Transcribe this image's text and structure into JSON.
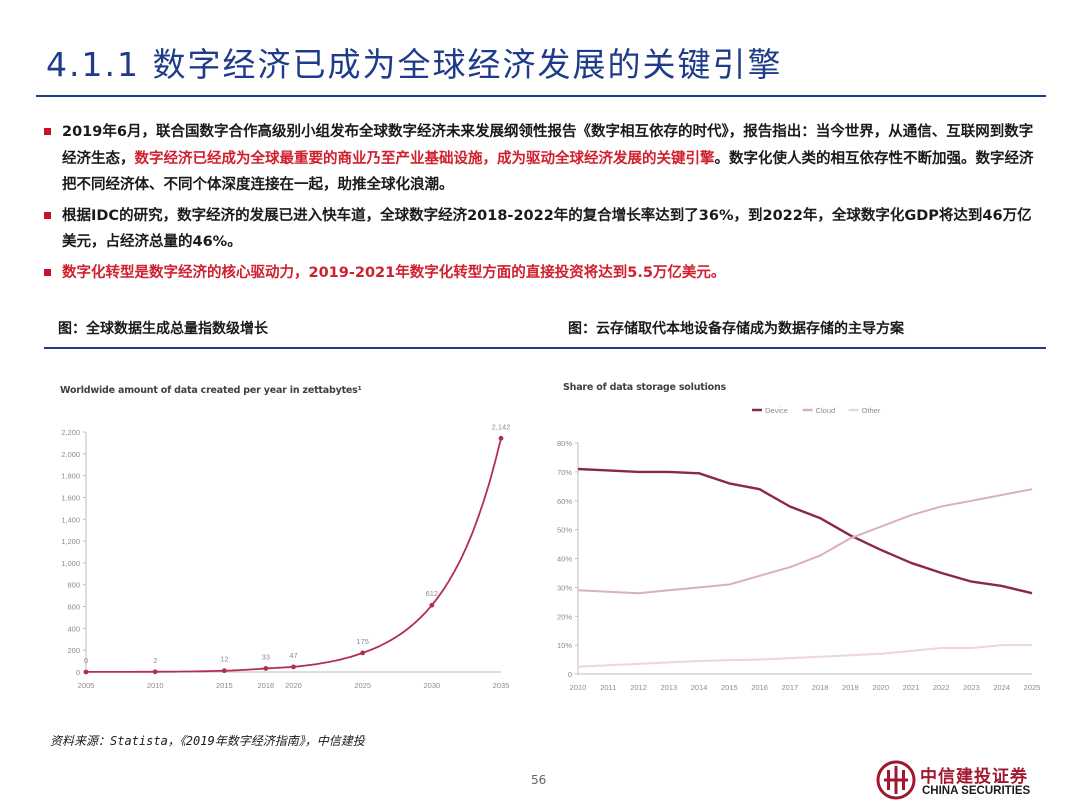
{
  "header": {
    "title": "4.1.1  数字经济已成为全球经济发展的关键引擎"
  },
  "bullets": [
    {
      "parts": [
        {
          "text": "2019年6月，联合国数字合作高级别小组发布全球数字经济未来发展纲领性报告《数字相互依存的时代》，报告指出：当今世界，从通信、互联网到数字经济生态，",
          "red": false
        },
        {
          "text": "数字经济已经成为全球最重要的商业乃至产业基础设施，成为驱动全球经济发展的关键引擎",
          "red": true
        },
        {
          "text": "。数字化使人类的相互依存性不断加强。数字经济把不同经济体、不同个体深度连接在一起，助推全球化浪潮。",
          "red": false
        }
      ]
    },
    {
      "parts": [
        {
          "text": "根据IDC的研究，数字经济的发展已进入快车道，全球数字经济2018-2022年的复合增长率达到了36%，到2022年，全球数字化GDP将达到46万亿美元，占经济总量的46%。",
          "red": false
        }
      ]
    },
    {
      "parts": [
        {
          "text": "数字化转型是数字经济的核心驱动力，2019-2021年数字化转型方面的直接投资将达到5.5万亿美元。",
          "red": true
        }
      ]
    }
  ],
  "figures": {
    "left_caption": "图：全球数据生成总量指数级增长",
    "right_caption": "图：云存储取代本地设备存储成为数据存储的主导方案"
  },
  "colors": {
    "title_blue": "#1f3c8a",
    "highlight_red": "#d0202e",
    "device_series": "#8b2848",
    "cloud_series": "#dbb0be",
    "other_series": "#ecd6de",
    "data_series": "#b0304e"
  },
  "chart_data": [
    {
      "type": "line",
      "title": "Worldwide amount of data created per year in zettabytes¹",
      "x": [
        2005,
        2010,
        2015,
        2018,
        2020,
        2025,
        2030,
        2035
      ],
      "xlim": [
        2005,
        2035
      ],
      "ylim": [
        0,
        2200
      ],
      "yticks": [
        0,
        200,
        400,
        600,
        800,
        1000,
        1200,
        1400,
        1600,
        1800,
        2000,
        2200
      ],
      "ytick_labels": [
        "0",
        "200",
        "400",
        "600",
        "800",
        "1,000",
        "1,200",
        "1,400",
        "1,600",
        "1,800",
        "2,000",
        "2,200"
      ],
      "series": [
        {
          "name": "",
          "values": [
            0,
            2,
            12,
            33,
            47,
            175,
            612,
            2142
          ],
          "labels": [
            "0",
            "2",
            "12",
            "33",
            "47",
            "175",
            "612",
            "2,142"
          ]
        }
      ],
      "grid": false,
      "legend": "none"
    },
    {
      "type": "line",
      "title": "Share of data storage solutions",
      "x": [
        2010,
        2011,
        2012,
        2013,
        2014,
        2015,
        2016,
        2017,
        2018,
        2019,
        2020,
        2021,
        2022,
        2023,
        2024,
        2025
      ],
      "xlim": [
        2010,
        2025
      ],
      "ylim": [
        0,
        80
      ],
      "yticks": [
        0,
        10,
        20,
        30,
        40,
        50,
        60,
        70,
        80
      ],
      "ytick_labels": [
        "0",
        "10%",
        "20%",
        "30%",
        "40%",
        "50%",
        "60%",
        "70%",
        "80%"
      ],
      "series": [
        {
          "name": "Device",
          "values": [
            71,
            70.5,
            70,
            70,
            69.5,
            66,
            64,
            58,
            54,
            48,
            43,
            38.5,
            35,
            32,
            30.5,
            28
          ]
        },
        {
          "name": "Cloud",
          "values": [
            29,
            28.5,
            28,
            29,
            30,
            31,
            34,
            37,
            41,
            47,
            51,
            55,
            58,
            60,
            62,
            64
          ]
        },
        {
          "name": "Other",
          "values": [
            2.5,
            3,
            3.5,
            4,
            4.5,
            4.8,
            5,
            5.5,
            6,
            6.5,
            7,
            8,
            9,
            9,
            10,
            10
          ]
        }
      ],
      "grid": false,
      "legend": "top"
    }
  ],
  "footer": {
    "source": "资料来源：Statista，《2019年数字经济指南》，中信建投",
    "page_number": "56",
    "logo_cn": "中信建投证券",
    "logo_en": "CHINA SECURITIES"
  }
}
